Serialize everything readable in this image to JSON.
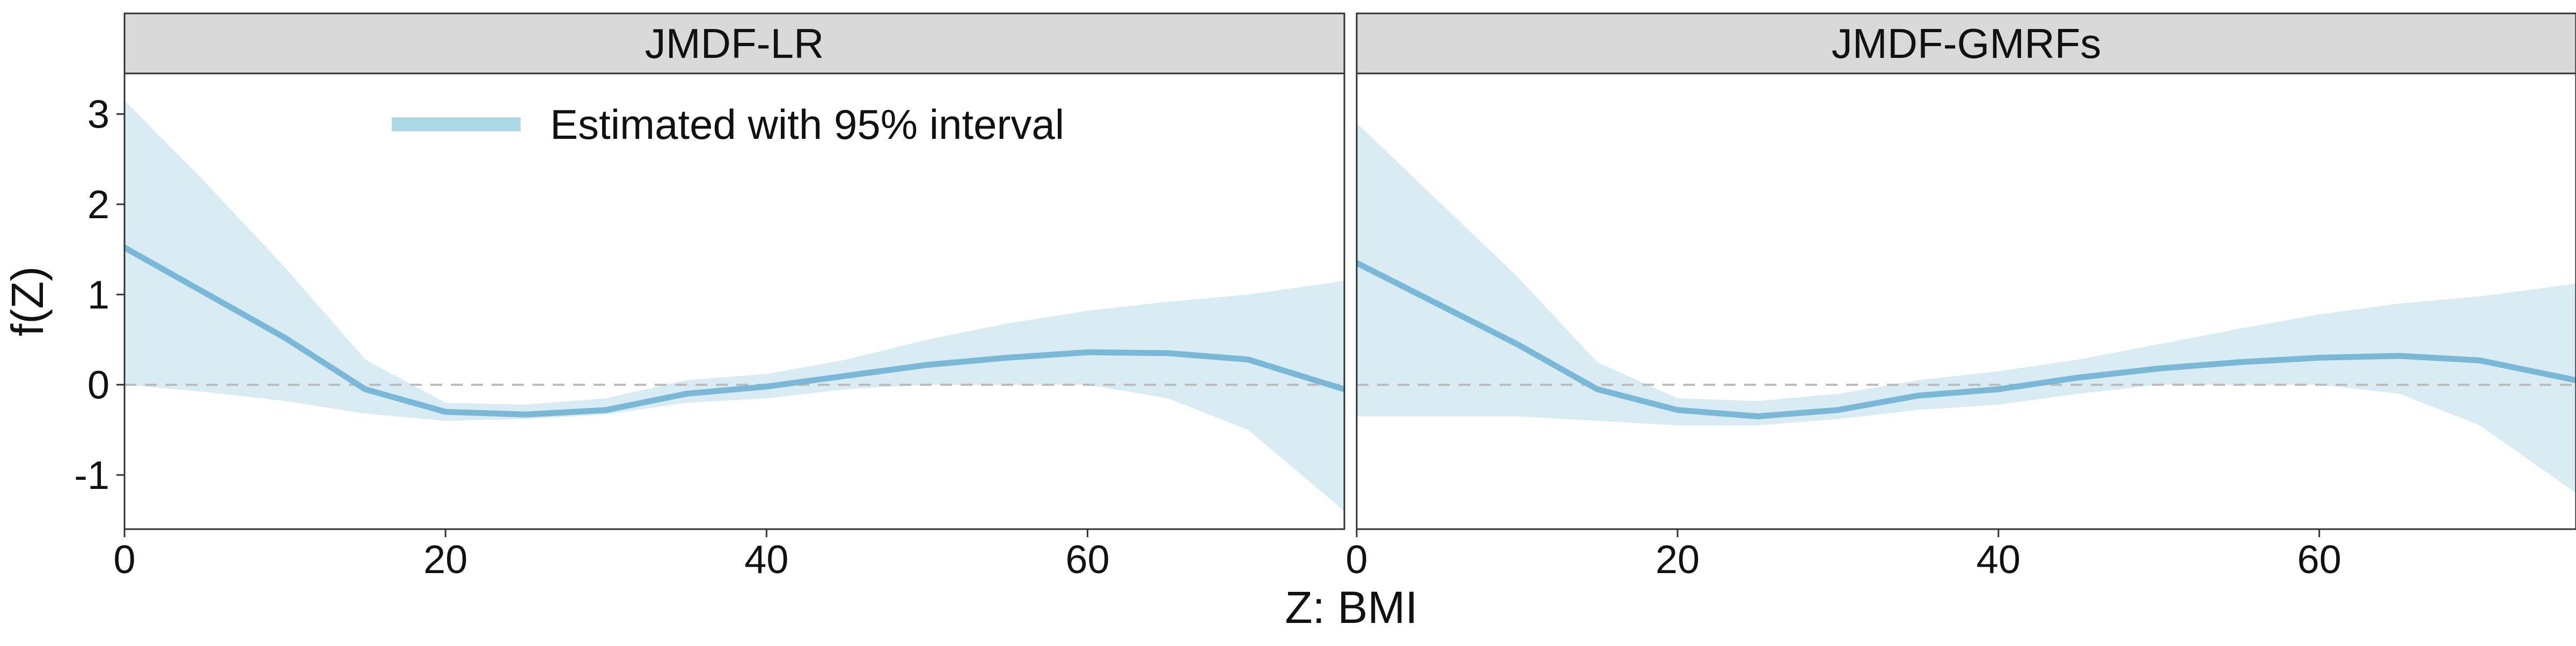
{
  "chart_data": {
    "type": "line",
    "xlabel": "Z: BMI",
    "ylabel": "f(Z)",
    "xlim": [
      0,
      76
    ],
    "ylim": [
      -1.6,
      3.45
    ],
    "x_ticks": [
      0,
      20,
      40,
      60
    ],
    "y_ticks": [
      -1,
      0,
      1,
      2,
      3
    ],
    "reference_line_y": 0,
    "grid": false,
    "legend": {
      "label": "Estimated with 95% interval",
      "placement": "top-left"
    },
    "colors": {
      "line": "#7ab8d8",
      "band": "#d9ecf4",
      "strip": "#d9d9d9",
      "reference": "#bbbbbb",
      "panel_border": "#333333"
    },
    "panels": [
      {
        "title": "JMDF-LR",
        "x": [
          0,
          5,
          10,
          15,
          20,
          25,
          30,
          35,
          40,
          45,
          50,
          55,
          60,
          65,
          70,
          76
        ],
        "estimate": [
          1.52,
          1.02,
          0.52,
          -0.05,
          -0.3,
          -0.33,
          -0.28,
          -0.1,
          -0.02,
          0.1,
          0.22,
          0.3,
          0.36,
          0.35,
          0.28,
          -0.05
        ],
        "lower": [
          0.0,
          -0.08,
          -0.18,
          -0.32,
          -0.4,
          -0.38,
          -0.33,
          -0.2,
          -0.15,
          -0.05,
          0.0,
          0.0,
          0.0,
          -0.15,
          -0.5,
          -1.4
        ],
        "upper": [
          3.15,
          2.25,
          1.3,
          0.28,
          -0.2,
          -0.22,
          -0.15,
          0.05,
          0.12,
          0.28,
          0.5,
          0.68,
          0.82,
          0.92,
          1.0,
          1.15
        ]
      },
      {
        "title": "JMDF-GMRFs",
        "x": [
          0,
          5,
          10,
          15,
          20,
          25,
          30,
          35,
          40,
          45,
          50,
          55,
          60,
          65,
          70,
          76
        ],
        "estimate": [
          1.35,
          0.9,
          0.45,
          -0.05,
          -0.28,
          -0.35,
          -0.28,
          -0.12,
          -0.05,
          0.08,
          0.18,
          0.25,
          0.3,
          0.32,
          0.27,
          0.05
        ],
        "lower": [
          -0.35,
          -0.35,
          -0.35,
          -0.4,
          -0.45,
          -0.45,
          -0.38,
          -0.28,
          -0.22,
          -0.1,
          0.0,
          0.0,
          0.0,
          -0.1,
          -0.45,
          -1.2
        ],
        "upper": [
          2.9,
          2.05,
          1.2,
          0.25,
          -0.15,
          -0.18,
          -0.1,
          0.05,
          0.15,
          0.28,
          0.45,
          0.62,
          0.78,
          0.9,
          0.98,
          1.12
        ]
      }
    ]
  }
}
